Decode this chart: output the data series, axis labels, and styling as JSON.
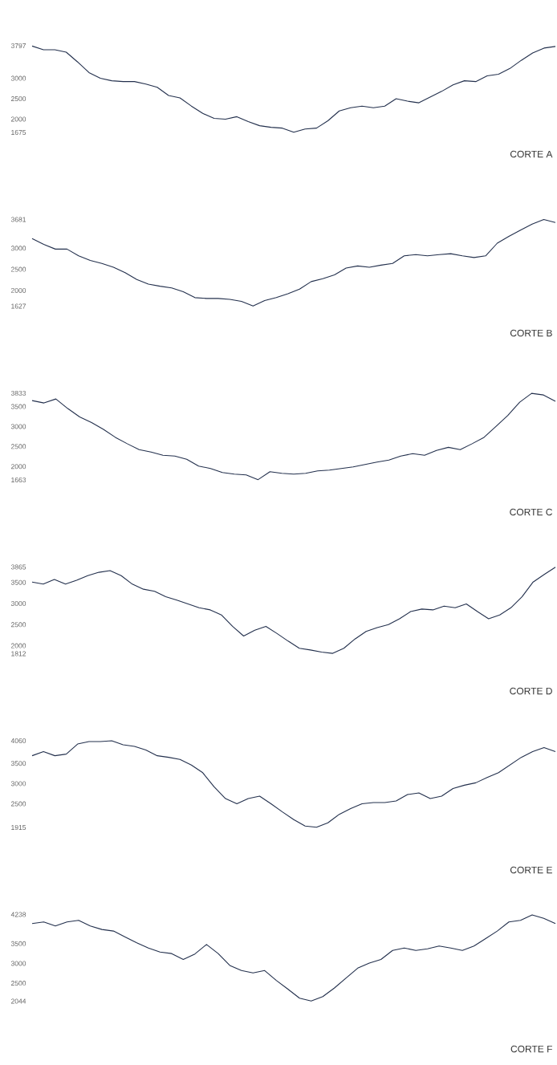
{
  "chart_data": [
    {
      "type": "line",
      "title": "CORTE A",
      "categories": [
        null,
        null,
        null,
        null,
        null,
        null,
        null,
        null,
        null,
        null,
        null,
        null,
        null,
        null,
        null,
        null,
        null,
        null,
        null,
        null,
        null,
        null,
        null,
        null,
        null,
        null,
        null,
        null,
        null,
        null,
        null,
        null,
        null,
        null,
        null,
        null,
        null,
        null,
        null,
        null,
        null,
        null,
        null,
        null,
        null,
        null,
        null
      ],
      "color": "#23304d",
      "values": [
        3790,
        3700,
        3700,
        3640,
        3400,
        3140,
        3000,
        2940,
        2920,
        2920,
        2860,
        2780,
        2580,
        2520,
        2320,
        2140,
        2020,
        2000,
        2060,
        1940,
        1840,
        1800,
        1780,
        1680,
        1760,
        1780,
        1960,
        2200,
        2280,
        2320,
        2280,
        2320,
        2500,
        2440,
        2400,
        2540,
        2680,
        2840,
        2940,
        2920,
        3060,
        3100,
        3240,
        3440,
        3620,
        3740,
        3780
      ],
      "ylim": [
        1675,
        3797
      ],
      "yticks": [
        1675,
        2000,
        2500,
        3000,
        3797
      ],
      "tick_labels": "y"
    },
    {
      "type": "line",
      "title": "CORTE B",
      "categories": [
        null,
        null,
        null,
        null,
        null,
        null,
        null,
        null,
        null,
        null,
        null,
        null,
        null,
        null,
        null,
        null,
        null,
        null,
        null,
        null,
        null,
        null,
        null,
        null,
        null,
        null,
        null,
        null,
        null,
        null,
        null,
        null,
        null,
        null,
        null,
        null,
        null,
        null,
        null,
        null,
        null,
        null,
        null,
        null,
        null,
        null
      ],
      "color": "#23304d",
      "values": [
        3230,
        3090,
        2980,
        2980,
        2820,
        2710,
        2640,
        2550,
        2420,
        2260,
        2150,
        2100,
        2060,
        1970,
        1830,
        1810,
        1810,
        1790,
        1740,
        1630,
        1760,
        1830,
        1920,
        2030,
        2210,
        2280,
        2370,
        2530,
        2580,
        2550,
        2600,
        2640,
        2820,
        2850,
        2820,
        2850,
        2870,
        2820,
        2780,
        2820,
        3120,
        3280,
        3430,
        3570,
        3680,
        3610
      ],
      "ylim": [
        1627,
        3681
      ],
      "yticks": [
        1627,
        2000,
        2500,
        3000,
        3681
      ],
      "tick_labels": "y"
    },
    {
      "type": "line",
      "title": "CORTE C",
      "categories": [
        null,
        null,
        null,
        null,
        null,
        null,
        null,
        null,
        null,
        null,
        null,
        null,
        null,
        null,
        null,
        null,
        null,
        null,
        null,
        null,
        null,
        null,
        null,
        null,
        null,
        null,
        null,
        null,
        null,
        null,
        null,
        null,
        null,
        null,
        null,
        null,
        null,
        null,
        null,
        null,
        null,
        null,
        null,
        null,
        null
      ],
      "color": "#23304d",
      "values": [
        3650,
        3590,
        3690,
        3450,
        3240,
        3100,
        2930,
        2730,
        2570,
        2420,
        2360,
        2280,
        2260,
        2180,
        2010,
        1950,
        1850,
        1810,
        1790,
        1670,
        1870,
        1830,
        1810,
        1830,
        1890,
        1910,
        1950,
        1990,
        2050,
        2110,
        2160,
        2260,
        2320,
        2280,
        2400,
        2480,
        2420,
        2570,
        2730,
        3000,
        3280,
        3610,
        3830,
        3790,
        3630
      ],
      "ylim": [
        1663,
        3833
      ],
      "yticks": [
        1663,
        2000,
        2500,
        3000,
        3500,
        3833
      ],
      "tick_labels": "y"
    },
    {
      "type": "line",
      "title": "CORTE D",
      "categories": [
        null,
        null,
        null,
        null,
        null,
        null,
        null,
        null,
        null,
        null,
        null,
        null,
        null,
        null,
        null,
        null,
        null,
        null,
        null,
        null,
        null,
        null,
        null,
        null,
        null,
        null,
        null,
        null,
        null,
        null,
        null,
        null,
        null,
        null,
        null,
        null,
        null,
        null,
        null,
        null,
        null,
        null,
        null,
        null,
        null,
        null,
        null,
        null
      ],
      "color": "#23304d",
      "values": [
        3510,
        3460,
        3570,
        3460,
        3550,
        3660,
        3740,
        3780,
        3660,
        3460,
        3340,
        3290,
        3160,
        3080,
        2990,
        2900,
        2850,
        2730,
        2460,
        2230,
        2370,
        2460,
        2290,
        2110,
        1940,
        1900,
        1850,
        1820,
        1940,
        2160,
        2340,
        2430,
        2500,
        2640,
        2810,
        2870,
        2850,
        2940,
        2900,
        2990,
        2810,
        2640,
        2730,
        2900,
        3160,
        3510,
        3690,
        3860
      ],
      "ylim": [
        1812,
        3865
      ],
      "yticks": [
        1812,
        2000,
        2500,
        3000,
        3500,
        3865
      ],
      "tick_labels": "y"
    },
    {
      "type": "line",
      "title": "CORTE E",
      "categories": [
        null,
        null,
        null,
        null,
        null,
        null,
        null,
        null,
        null,
        null,
        null,
        null,
        null,
        null,
        null,
        null,
        null,
        null,
        null,
        null,
        null,
        null,
        null,
        null,
        null,
        null,
        null,
        null,
        null,
        null,
        null,
        null,
        null,
        null,
        null,
        null,
        null,
        null,
        null,
        null,
        null,
        null,
        null,
        null,
        null,
        null,
        null
      ],
      "color": "#23304d",
      "values": [
        3690,
        3790,
        3690,
        3730,
        3980,
        4040,
        4040,
        4060,
        3960,
        3920,
        3830,
        3690,
        3650,
        3600,
        3460,
        3270,
        2920,
        2630,
        2500,
        2630,
        2690,
        2500,
        2300,
        2110,
        1950,
        1920,
        2030,
        2240,
        2380,
        2500,
        2530,
        2530,
        2570,
        2730,
        2770,
        2630,
        2690,
        2880,
        2960,
        3020,
        3150,
        3270,
        3460,
        3650,
        3790,
        3890,
        3790
      ],
      "ylim": [
        1915,
        4060
      ],
      "yticks": [
        1915,
        2500,
        3000,
        3500,
        4060
      ],
      "tick_labels": "y"
    },
    {
      "type": "line",
      "title": "CORTE F",
      "categories": [
        null,
        null,
        null,
        null,
        null,
        null,
        null,
        null,
        null,
        null,
        null,
        null,
        null,
        null,
        null,
        null,
        null,
        null,
        null,
        null,
        null,
        null,
        null,
        null,
        null,
        null,
        null,
        null,
        null,
        null,
        null,
        null,
        null,
        null,
        null,
        null,
        null,
        null,
        null,
        null,
        null,
        null,
        null,
        null,
        null,
        null
      ],
      "color": "#23304d",
      "values": [
        4010,
        4050,
        3950,
        4050,
        4090,
        3950,
        3860,
        3820,
        3670,
        3520,
        3390,
        3290,
        3250,
        3100,
        3240,
        3480,
        3250,
        2950,
        2820,
        2760,
        2820,
        2570,
        2350,
        2120,
        2050,
        2160,
        2380,
        2630,
        2880,
        3010,
        3100,
        3330,
        3390,
        3330,
        3370,
        3440,
        3390,
        3330,
        3440,
        3630,
        3820,
        4050,
        4090,
        4230,
        4140,
        4010
      ],
      "ylim": [
        2044,
        4238
      ],
      "yticks": [
        2044,
        2500,
        3000,
        3500,
        4238
      ],
      "tick_labels": "y"
    }
  ]
}
